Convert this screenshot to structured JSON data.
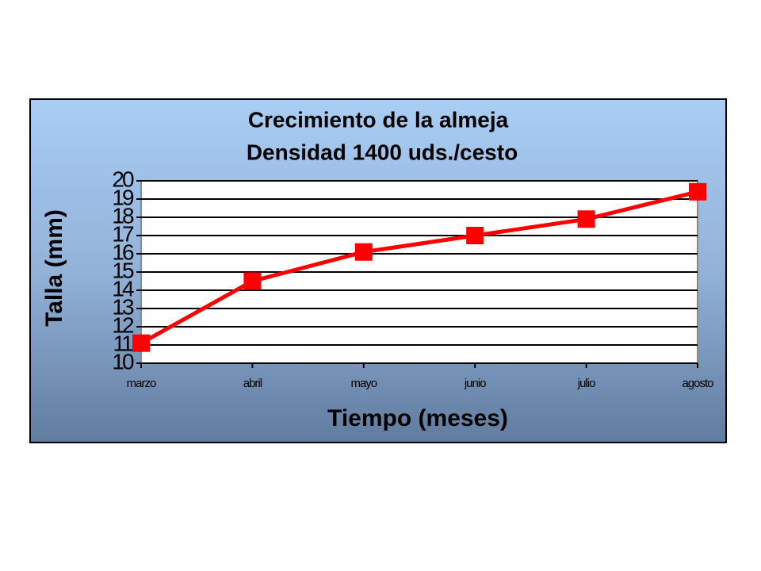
{
  "chart_data": {
    "type": "line",
    "title": [
      "Crecimiento de la almeja",
      "Densidad 1400 uds./cesto"
    ],
    "x_label": "Tiempo (meses)",
    "y_label": "Talla (mm)",
    "categories": [
      "marzo",
      "abril",
      "mayo",
      "junio",
      "julio",
      "agosto"
    ],
    "series": [
      {
        "color": "#ff0000",
        "values": [
          11.1,
          14.5,
          16.1,
          17.0,
          17.9,
          19.4
        ]
      }
    ],
    "ylim": [
      10,
      20
    ],
    "yticks": [
      10,
      11,
      12,
      13,
      14,
      15,
      16,
      17,
      18,
      19,
      20
    ],
    "grid": true
  }
}
